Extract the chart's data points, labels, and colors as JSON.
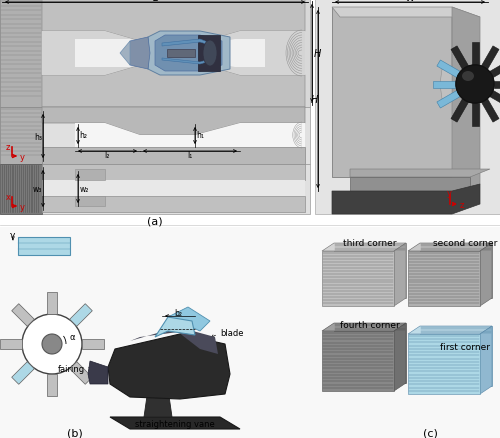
{
  "fig_width": 5.0,
  "fig_height": 4.39,
  "dpi": 100,
  "bg_color": "#ffffff",
  "label_a": "(a)",
  "label_b": "(b)",
  "label_c": "(c)",
  "label_fontsize": 8,
  "gray_dark": "#787878",
  "gray_mid": "#a0a0a0",
  "gray_light": "#c0c0c0",
  "gray_lighter": "#d4d4d4",
  "gray_bg": "#b8b8b8",
  "blue_light": "#add8e6",
  "blue_mid": "#7ab0cc",
  "blue_dark": "#4080a0",
  "black": "#000000",
  "red_axes": "#cc0000",
  "white": "#ffffff"
}
